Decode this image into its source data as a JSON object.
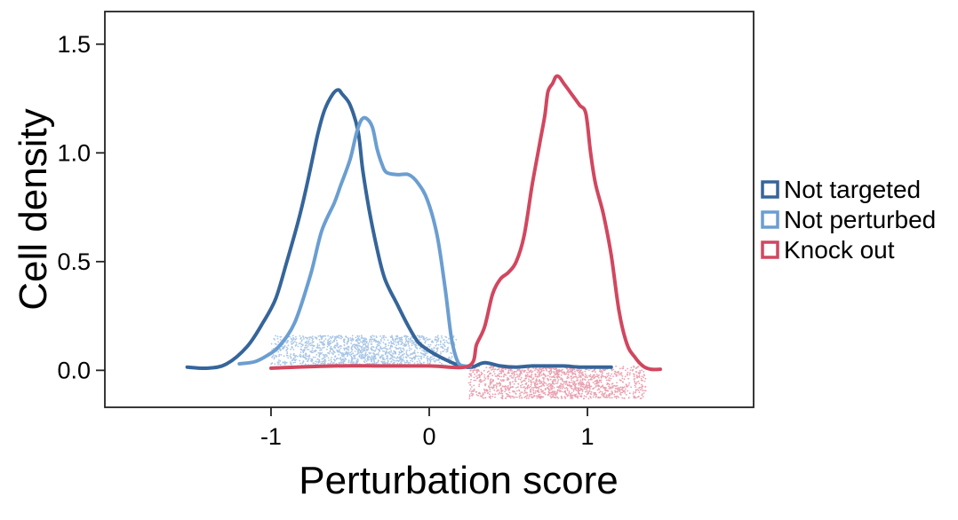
{
  "chart_data": {
    "type": "line",
    "title": "",
    "xlabel": "Perturbation score",
    "ylabel": "Cell density",
    "xlim": [
      -2.05,
      2.05
    ],
    "ylim": [
      -0.17,
      1.65
    ],
    "x_ticks": [
      -1,
      0,
      1
    ],
    "x_tick_labels": [
      "-1",
      "0",
      "1"
    ],
    "y_ticks": [
      0.0,
      0.5,
      1.0,
      1.5
    ],
    "y_tick_labels": [
      "0.0",
      "0.5",
      "1.0",
      "1.5"
    ],
    "grid": false,
    "legend_position": "right",
    "series": [
      {
        "name": "Not targeted",
        "color": "#35659a",
        "x": [
          -1.53,
          -1.4,
          -1.28,
          -1.15,
          -1.05,
          -0.97,
          -0.9,
          -0.83,
          -0.78,
          -0.73,
          -0.7,
          -0.66,
          -0.61,
          -0.575,
          -0.55,
          -0.5,
          -0.45,
          -0.42,
          -0.38,
          -0.33,
          -0.28,
          -0.2,
          -0.13,
          -0.07,
          0.0,
          0.1,
          0.2,
          0.27,
          0.35,
          0.45,
          0.55,
          0.65,
          0.75,
          0.85,
          0.95,
          1.05,
          1.15
        ],
        "values": [
          0.015,
          0.01,
          0.03,
          0.11,
          0.22,
          0.33,
          0.5,
          0.68,
          0.83,
          1.0,
          1.1,
          1.2,
          1.27,
          1.29,
          1.27,
          1.22,
          1.1,
          0.92,
          0.74,
          0.56,
          0.42,
          0.3,
          0.2,
          0.13,
          0.09,
          0.05,
          0.02,
          0.015,
          0.035,
          0.02,
          0.015,
          0.02,
          0.02,
          0.02,
          0.015,
          0.015,
          0.015
        ]
      },
      {
        "name": "Not perturbed",
        "color": "#6b9ed1",
        "x": [
          -1.2,
          -1.1,
          -1.02,
          -0.95,
          -0.85,
          -0.75,
          -0.68,
          -0.6,
          -0.56,
          -0.5,
          -0.46,
          -0.43,
          -0.4,
          -0.36,
          -0.33,
          -0.3,
          -0.27,
          -0.2,
          -0.13,
          -0.07,
          -0.01,
          0.05,
          0.1,
          0.14,
          0.18,
          0.22,
          0.26
        ],
        "values": [
          0.03,
          0.04,
          0.07,
          0.11,
          0.22,
          0.44,
          0.64,
          0.77,
          0.85,
          0.97,
          1.09,
          1.15,
          1.16,
          1.12,
          1.02,
          0.95,
          0.91,
          0.9,
          0.9,
          0.86,
          0.78,
          0.62,
          0.38,
          0.15,
          0.04,
          0.02,
          0.02
        ]
      },
      {
        "name": "Knock out",
        "color": "#d1475f",
        "x": [
          -1.0,
          -0.6,
          -0.3,
          0.0,
          0.25,
          0.3,
          0.35,
          0.4,
          0.45,
          0.5,
          0.55,
          0.6,
          0.65,
          0.7,
          0.73,
          0.75,
          0.78,
          0.8,
          0.82,
          0.85,
          0.9,
          0.95,
          0.99,
          1.02,
          1.05,
          1.1,
          1.15,
          1.2,
          1.25,
          1.3,
          1.35,
          1.4,
          1.46
        ],
        "values": [
          0.01,
          0.02,
          0.02,
          0.02,
          0.02,
          0.12,
          0.2,
          0.35,
          0.42,
          0.45,
          0.5,
          0.62,
          0.85,
          1.05,
          1.17,
          1.28,
          1.32,
          1.35,
          1.35,
          1.32,
          1.27,
          1.22,
          1.18,
          1.0,
          0.86,
          0.72,
          0.53,
          0.27,
          0.12,
          0.06,
          0.02,
          0.005,
          0.005
        ]
      }
    ],
    "scatter_bands": [
      {
        "series": "Not perturbed",
        "color": "#a9c6e6",
        "x_range": [
          -1.0,
          0.17
        ],
        "y_range": [
          0.02,
          0.16
        ],
        "peak_x": -0.4,
        "count": 1500
      },
      {
        "series": "Knock out",
        "color": "#e9a0b0",
        "x_range": [
          0.25,
          1.37
        ],
        "y_range": [
          -0.13,
          0.02
        ],
        "peak_x": 0.8,
        "count": 1500
      }
    ]
  }
}
